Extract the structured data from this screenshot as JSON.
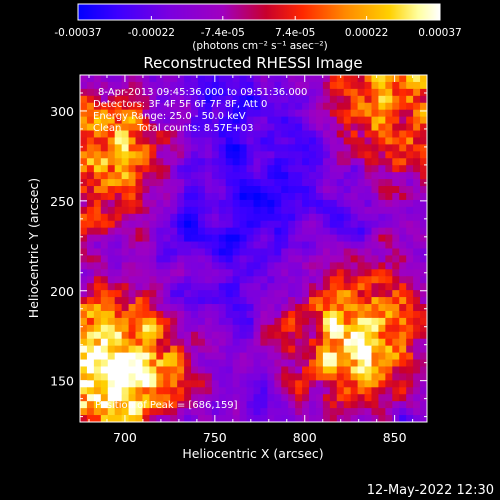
{
  "colorbar": {
    "ticks": [
      "-0.00037",
      "-0.00022",
      "-7.4e-05",
      "7.4e-05",
      "0.00022",
      "0.00037"
    ],
    "tick_values": [
      -0.00037,
      -0.00022,
      -7.4e-05,
      7.4e-05,
      0.00022,
      0.00037
    ],
    "range": [
      -0.00037,
      0.00037
    ],
    "units_label": "(photons cm⁻² s⁻¹ asec⁻²)",
    "colors": [
      "#0000ff",
      "#3c00ff",
      "#7a00e0",
      "#a000c0",
      "#c8002c",
      "#ff2800",
      "#ff8a00",
      "#ffd000",
      "#ffffa0",
      "#ffffff"
    ]
  },
  "plot": {
    "title": "Reconstructed RHESSI Image",
    "xlabel": "Heliocentric X (arcsec)",
    "ylabel": "Heliocentric Y (arcsec)",
    "xticks": [
      "700",
      "750",
      "800",
      "850"
    ],
    "xtick_values": [
      700,
      750,
      800,
      850
    ],
    "yticks": [
      "150",
      "200",
      "250",
      "300"
    ],
    "ytick_values": [
      150,
      200,
      250,
      300
    ],
    "xlim": [
      675,
      868
    ],
    "ylim": [
      127,
      320
    ]
  },
  "annotations": {
    "time_range": "8-Apr-2013 09:45:36.000 to 09:51:36.000",
    "detectors": "Detectors: 3F 4F 5F 6F 7F 8F, Att 0",
    "energy": "Energy Range: 25.0 - 50.0 keV",
    "clean": "Clean     Total counts: 8.57E+03",
    "peak": "Position of Peak = [686,159]"
  },
  "footer": {
    "timestamp": "12-May-2022 12:30"
  },
  "image": {
    "peak_position": [
      686,
      159
    ],
    "hot_regions": [
      {
        "name": "lower-left",
        "center": [
          690,
          155
        ],
        "intensity": 1.0
      },
      {
        "name": "lower-right",
        "center": [
          830,
          175
        ],
        "intensity": 0.8
      },
      {
        "name": "upper-right",
        "center": [
          850,
          300
        ],
        "intensity": 0.7
      },
      {
        "name": "upper-left",
        "center": [
          685,
          275
        ],
        "intensity": 0.7
      }
    ]
  }
}
